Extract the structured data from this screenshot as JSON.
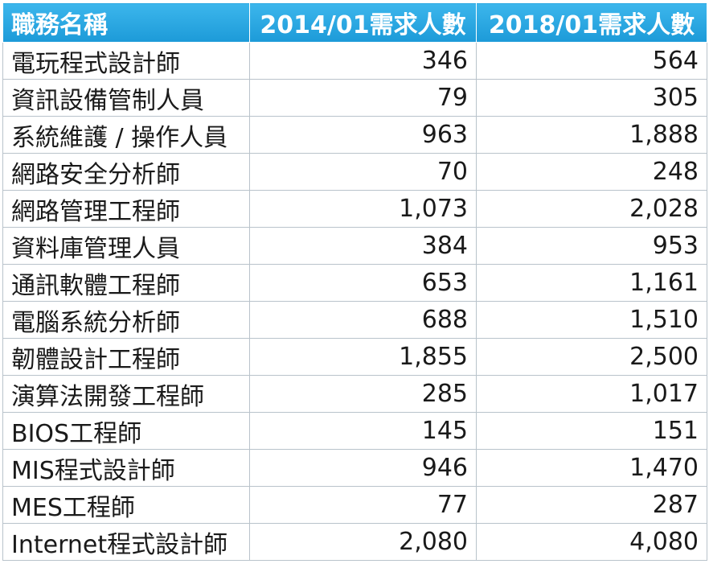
{
  "table": {
    "headers": [
      "職務名稱",
      "2014/01需求人數",
      "2018/01需求人數"
    ],
    "rows": [
      [
        "電玩程式設計師",
        "346",
        "564"
      ],
      [
        "資訊設備管制人員",
        "79",
        "305"
      ],
      [
        "系統維護 / 操作人員",
        "963",
        "1,888"
      ],
      [
        "網路安全分析師",
        "70",
        "248"
      ],
      [
        "網路管理工程師",
        "1,073",
        "2,028"
      ],
      [
        "資料庫管理人員",
        "384",
        "953"
      ],
      [
        "通訊軟體工程師",
        "653",
        "1,161"
      ],
      [
        "電腦系統分析師",
        "688",
        "1,510"
      ],
      [
        "韌體設計工程師",
        "1,855",
        "2,500"
      ],
      [
        "演算法開發工程師",
        "285",
        "1,017"
      ],
      [
        "BIOS工程師",
        "145",
        "151"
      ],
      [
        "MIS程式設計師",
        "946",
        "1,470"
      ],
      [
        "MES工程師",
        "77",
        "287"
      ],
      [
        "Internet程式設計師",
        "2,080",
        "4,080"
      ]
    ]
  },
  "colors": {
    "header_bg": "#1c9ad8",
    "header_text": "#ffffff",
    "grid": "#b9c3cb"
  }
}
